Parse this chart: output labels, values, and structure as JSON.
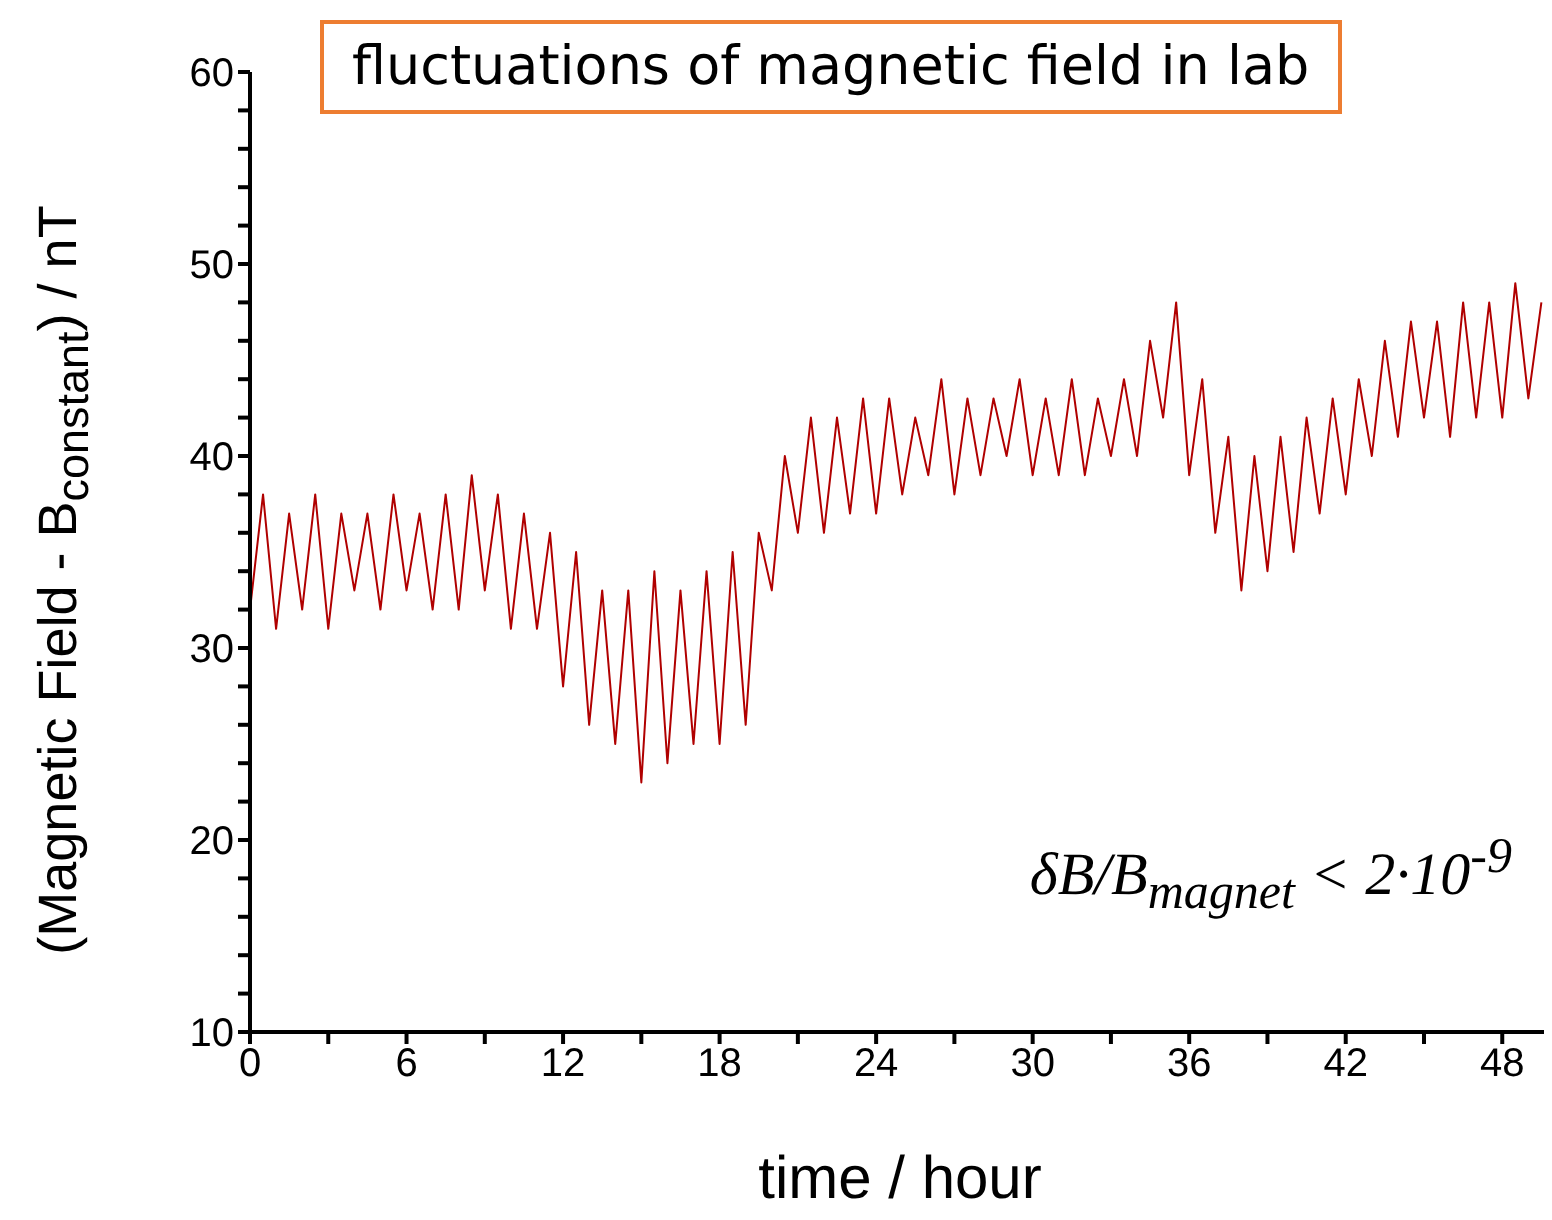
{
  "chart_data": {
    "type": "line",
    "title": "fluctuations of magnetic field in lab",
    "xlabel": "time / hour",
    "ylabel": "(Magnetic Field - B$_{constant}$) / nT",
    "annotations": [
      "δB/B$_{magnet}$ < 2·10$^{-9}$"
    ],
    "x": [
      0,
      0.5,
      1,
      1.5,
      2,
      2.5,
      3,
      3.5,
      4,
      4.5,
      5,
      5.5,
      6,
      6.5,
      7,
      7.5,
      8,
      8.5,
      9,
      9.5,
      10,
      10.5,
      11,
      11.5,
      12,
      12.5,
      13,
      13.5,
      14,
      14.5,
      15,
      15.5,
      16,
      16.5,
      17,
      17.5,
      18,
      18.5,
      19,
      19.5,
      20,
      20.5,
      21,
      21.5,
      22,
      22.5,
      23,
      23.5,
      24,
      24.5,
      25,
      25.5,
      26,
      26.5,
      27,
      27.5,
      28,
      28.5,
      29,
      29.5,
      30,
      30.5,
      31,
      31.5,
      32,
      32.5,
      33,
      33.5,
      34,
      34.5,
      35,
      35.5,
      36,
      36.5,
      37,
      37.5,
      38,
      38.5,
      39,
      39.5,
      40,
      40.5,
      41,
      41.5,
      42,
      42.5,
      43,
      43.5,
      44,
      44.5,
      45,
      45.5,
      46,
      46.5,
      47,
      47.5,
      48,
      48.5,
      49,
      49.5
    ],
    "series": [
      {
        "color": "#b00000",
        "values": [
          32,
          38,
          31,
          37,
          32,
          38,
          31,
          37,
          33,
          37,
          32,
          38,
          33,
          37,
          32,
          38,
          32,
          39,
          33,
          38,
          31,
          37,
          31,
          36,
          28,
          35,
          26,
          33,
          25,
          33,
          23,
          34,
          24,
          33,
          25,
          34,
          25,
          35,
          26,
          36,
          33,
          40,
          36,
          42,
          36,
          42,
          37,
          43,
          37,
          43,
          38,
          42,
          39,
          44,
          38,
          43,
          39,
          43,
          40,
          44,
          39,
          43,
          39,
          44,
          39,
          43,
          40,
          44,
          40,
          46,
          42,
          48,
          39,
          44,
          36,
          41,
          33,
          40,
          34,
          41,
          35,
          42,
          37,
          43,
          38,
          44,
          40,
          46,
          41,
          47,
          42,
          47,
          41,
          48,
          42,
          48,
          42,
          49,
          43,
          48
        ]
      }
    ],
    "xlim": [
      0,
      49.6
    ],
    "xticks": [
      0,
      {
        "value": 3,
        "label": null
      },
      6,
      {
        "value": 9,
        "label": null
      },
      12,
      {
        "value": 15,
        "label": null
      },
      18,
      {
        "value": 21,
        "label": null
      },
      24,
      {
        "value": 27,
        "label": null
      },
      30,
      {
        "value": 33,
        "label": null
      },
      36,
      {
        "value": 39,
        "label": null
      },
      42,
      {
        "value": 45,
        "label": null
      },
      48
    ],
    "ylim": [
      10,
      60
    ],
    "yticks": [
      10,
      {
        "value": 12,
        "label": null
      },
      {
        "value": 14,
        "label": null
      },
      {
        "value": 16,
        "label": null
      },
      {
        "value": 18,
        "label": null
      },
      20,
      {
        "value": 22,
        "label": null
      },
      {
        "value": 24,
        "label": null
      },
      {
        "value": 26,
        "label": null
      },
      {
        "value": 28,
        "label": null
      },
      30,
      {
        "value": 32,
        "label": null
      },
      {
        "value": 34,
        "label": null
      },
      {
        "value": 36,
        "label": null
      },
      {
        "value": 38,
        "label": null
      },
      40,
      {
        "value": 42,
        "label": null
      },
      {
        "value": 44,
        "label": null
      },
      {
        "value": 46,
        "label": null
      },
      {
        "value": 48,
        "label": null
      },
      50,
      {
        "value": 52,
        "label": null
      },
      {
        "value": 54,
        "label": null
      },
      {
        "value": 56,
        "label": null
      },
      {
        "value": 58,
        "label": null
      },
      60
    ],
    "grid": false,
    "legend": false
  }
}
